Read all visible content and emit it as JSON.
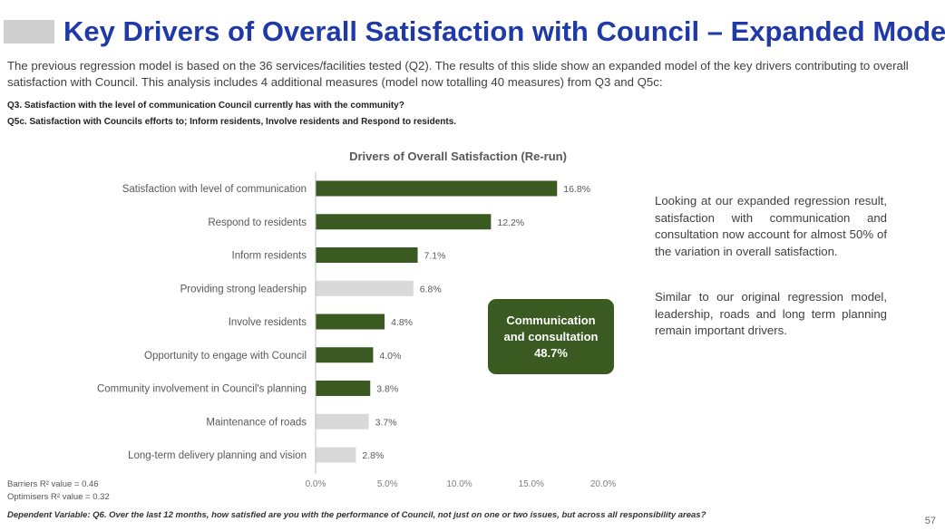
{
  "header": {
    "title": "Key Drivers of Overall Satisfaction with Council – Expanded Model",
    "intro": "The previous regression model is based on the 36 services/facilities tested (Q2). The results of this slide show an expanded model of the key drivers contributing to overall satisfaction with Council. This analysis includes 4 additional measures (model now totalling 40 measures) from Q3 and Q5c:",
    "q3": "Q3. Satisfaction with the level of communication Council currently has with the community?",
    "q5c": "Q5c. Satisfaction with Councils efforts to; Inform residents, Involve residents and Respond to residents."
  },
  "chart_data": {
    "type": "bar",
    "orientation": "horizontal",
    "title": "Drivers of Overall Satisfaction (Re-run)",
    "categories": [
      "Satisfaction with level of communication",
      "Respond to residents",
      "Inform residents",
      "Providing strong leadership",
      "Involve residents",
      "Opportunity to engage with Council",
      "Community involvement in Council's planning",
      "Maintenance of roads",
      "Long-term delivery planning and vision"
    ],
    "values": [
      16.8,
      12.2,
      7.1,
      6.8,
      4.8,
      4.0,
      3.8,
      3.7,
      2.8
    ],
    "value_labels": [
      "16.8%",
      "12.2%",
      "7.1%",
      "6.8%",
      "4.8%",
      "4.0%",
      "3.8%",
      "3.7%",
      "2.8%"
    ],
    "bar_colors": [
      "#3a5a22",
      "#3a5a22",
      "#3a5a22",
      "#d9d9d9",
      "#3a5a22",
      "#3a5a22",
      "#3a5a22",
      "#d9d9d9",
      "#d9d9d9"
    ],
    "xlim": [
      0,
      20
    ],
    "xticks": [
      "0.0%",
      "5.0%",
      "10.0%",
      "15.0%",
      "20.0%"
    ],
    "grid": false,
    "legend": "none"
  },
  "callout": {
    "line1": "Communication",
    "line2": "and consultation",
    "line3": "48.7%",
    "color": "#3a5a22"
  },
  "commentary": {
    "p1": "Looking at our expanded regression result, satisfaction with communication and consultation now account for almost 50% of the variation in overall satisfaction.",
    "p2": "Similar to our original regression model, leadership, roads and long term planning remain important drivers."
  },
  "footer": {
    "barriers_r2": "Barriers R² value = 0.46",
    "optimisers_r2": "Optimisers R² value = 0.32",
    "dependent_variable": "Dependent Variable: Q6. Over the last 12 months, how satisfied are you with the performance of Council, not just on one or two issues, but across all responsibility areas?",
    "page_number": "57"
  },
  "colors": {
    "title": "#1f3aa8",
    "accent_green": "#3a5a22",
    "neutral_bar": "#d9d9d9"
  }
}
